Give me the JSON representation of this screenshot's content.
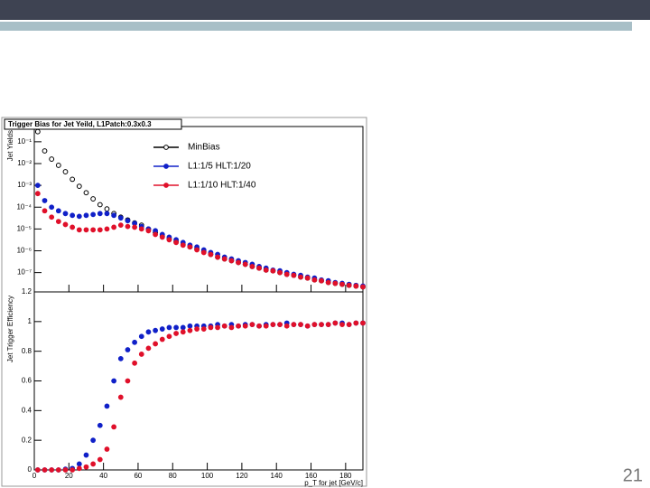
{
  "slide": {
    "page_number": "21"
  },
  "chart_data": [
    {
      "type": "scatter",
      "title": "Trigger Bias for Jet Yeild, L1Patch:0.3x0.3",
      "ylabel": "Jet Yields",
      "log_y": true,
      "ylim": [
        1.3e-08,
        0.5
      ],
      "yticks": [
        {
          "value": 0.1,
          "label": "10⁻¹"
        },
        {
          "value": 0.01,
          "label": "10⁻²"
        },
        {
          "value": 0.001,
          "label": "10⁻³"
        },
        {
          "value": 0.0001,
          "label": "10⁻⁴"
        },
        {
          "value": 1e-05,
          "label": "10⁻⁵"
        },
        {
          "value": 1e-06,
          "label": "10⁻⁶"
        },
        {
          "value": 1e-07,
          "label": "10⁻⁷"
        }
      ],
      "xlim": [
        0,
        190
      ],
      "legend": "top",
      "grid": false,
      "x": [
        2,
        6,
        10,
        14,
        18,
        22,
        26,
        30,
        34,
        38,
        42,
        46,
        50,
        54,
        58,
        62,
        66,
        70,
        74,
        78,
        82,
        86,
        90,
        94,
        98,
        102,
        106,
        110,
        114,
        118,
        122,
        126,
        130,
        134,
        138,
        142,
        146,
        150,
        154,
        158,
        162,
        166,
        170,
        174,
        178,
        182,
        186,
        190
      ],
      "series": [
        {
          "name": "MinBias",
          "color": "#000000",
          "marker": "open",
          "values": [
            0.29,
            0.038,
            0.016,
            0.0083,
            0.0042,
            0.0019,
            0.00091,
            0.00046,
            0.00024,
            0.00013,
            8.3e-05,
            5.1e-05,
            3.5e-05,
            2.6e-05,
            1.9e-05,
            1.5e-05,
            1e-05,
            6.8e-06,
            4.6e-06,
            3.5e-06,
            2.6e-06,
            1.9e-06,
            1.5e-06,
            1.2e-06,
            9.1e-07,
            6.8e-07,
            5.1e-07,
            4.2e-07,
            3.5e-07,
            2.9e-07,
            2.4e-07,
            1.9e-07,
            1.6e-07,
            1.3e-07,
            1.2e-07,
            1e-07,
            8.3e-08,
            7.5e-08,
            6.2e-08,
            5.6e-08,
            4.6e-08,
            4.2e-08,
            3.5e-08,
            3.2e-08,
            2.9e-08,
            2.6e-08,
            2.4e-08,
            2.2e-08
          ]
        },
        {
          "name": "L1:1/5 HLT:1/20",
          "color": "#1020c8",
          "marker": "filled",
          "values": [
            0.001,
            0.0002,
            0.0001,
            6.8e-05,
            5.1e-05,
            4.2e-05,
            3.8e-05,
            4.2e-05,
            4.6e-05,
            5.1e-05,
            5.1e-05,
            4.2e-05,
            3.2e-05,
            2.4e-05,
            1.8e-05,
            1.3e-05,
            1e-05,
            8.3e-06,
            5.6e-06,
            4.2e-06,
            3.2e-06,
            2.4e-06,
            1.8e-06,
            1.5e-06,
            1.1e-06,
            8.3e-07,
            6.8e-07,
            5.1e-07,
            4.2e-07,
            3.5e-07,
            2.9e-07,
            2.4e-07,
            1.9e-07,
            1.6e-07,
            1.3e-07,
            1.2e-07,
            1e-07,
            8.3e-08,
            7.5e-08,
            6.2e-08,
            5.6e-08,
            4.6e-08,
            4.2e-08,
            3.5e-08,
            3.2e-08,
            2.9e-08,
            2.6e-08,
            2.4e-08
          ]
        },
        {
          "name": "L1:1/10 HLT:1/40",
          "color": "#e0102a",
          "marker": "filled",
          "values": [
            0.00042,
            6.8e-05,
            3.5e-05,
            2.2e-05,
            1.6e-05,
            1.2e-05,
            9.1e-06,
            9.1e-06,
            9.1e-06,
            9.1e-06,
            1e-05,
            1.2e-05,
            1.5e-05,
            1.3e-05,
            1.2e-05,
            1e-05,
            8.3e-06,
            5.6e-06,
            4.2e-06,
            3.2e-06,
            2.4e-06,
            1.8e-06,
            1.5e-06,
            1.1e-06,
            8.3e-07,
            6.8e-07,
            5.1e-07,
            4.2e-07,
            3.5e-07,
            2.9e-07,
            2.4e-07,
            1.9e-07,
            1.6e-07,
            1.3e-07,
            1.2e-07,
            1e-07,
            8.3e-08,
            7.5e-08,
            6.2e-08,
            5.6e-08,
            4.6e-08,
            4.2e-08,
            3.5e-08,
            3.2e-08,
            2.9e-08,
            2.6e-08,
            2.4e-08,
            2.2e-08
          ]
        }
      ]
    },
    {
      "type": "scatter",
      "ylabel": "Jet Trigger Efficiency",
      "xlabel": "p_T for jet [GeV/c]",
      "ylim": [
        0,
        1.2
      ],
      "yticks": [
        0,
        0.2,
        0.4,
        0.6,
        0.8,
        1,
        1.2
      ],
      "xlim": [
        0,
        190
      ],
      "xticks": [
        0,
        20,
        40,
        60,
        80,
        100,
        120,
        140,
        160,
        180
      ],
      "grid": false,
      "x": [
        2,
        6,
        10,
        14,
        18,
        22,
        26,
        30,
        34,
        38,
        42,
        46,
        50,
        54,
        58,
        62,
        66,
        70,
        74,
        78,
        82,
        86,
        90,
        94,
        98,
        102,
        106,
        110,
        114,
        118,
        122,
        126,
        130,
        134,
        138,
        142,
        146,
        150,
        154,
        158,
        162,
        166,
        170,
        174,
        178,
        182,
        186,
        190
      ],
      "series": [
        {
          "name": "L1:1/5 HLT:1/20",
          "color": "#1020c8",
          "values": [
            0,
            0,
            0,
            0,
            0.005,
            0.01,
            0.04,
            0.1,
            0.2,
            0.3,
            0.43,
            0.6,
            0.75,
            0.81,
            0.86,
            0.9,
            0.93,
            0.94,
            0.95,
            0.96,
            0.96,
            0.96,
            0.97,
            0.97,
            0.97,
            0.97,
            0.98,
            0.97,
            0.98,
            0.97,
            0.98,
            0.98,
            0.97,
            0.98,
            0.98,
            0.98,
            0.99,
            0.98,
            0.98,
            0.97,
            0.98,
            0.98,
            0.98,
            0.99,
            0.99,
            0.98,
            0.99,
            0.99
          ]
        },
        {
          "name": "L1:1/10 HLT:1/40",
          "color": "#e0102a",
          "values": [
            0,
            0,
            0,
            0,
            0,
            0,
            0.01,
            0.02,
            0.04,
            0.07,
            0.14,
            0.29,
            0.49,
            0.6,
            0.72,
            0.78,
            0.82,
            0.85,
            0.88,
            0.9,
            0.92,
            0.93,
            0.94,
            0.95,
            0.95,
            0.96,
            0.96,
            0.97,
            0.96,
            0.97,
            0.97,
            0.98,
            0.97,
            0.97,
            0.98,
            0.98,
            0.97,
            0.98,
            0.98,
            0.97,
            0.98,
            0.98,
            0.98,
            0.99,
            0.98,
            0.98,
            0.99,
            0.99
          ]
        }
      ]
    }
  ]
}
